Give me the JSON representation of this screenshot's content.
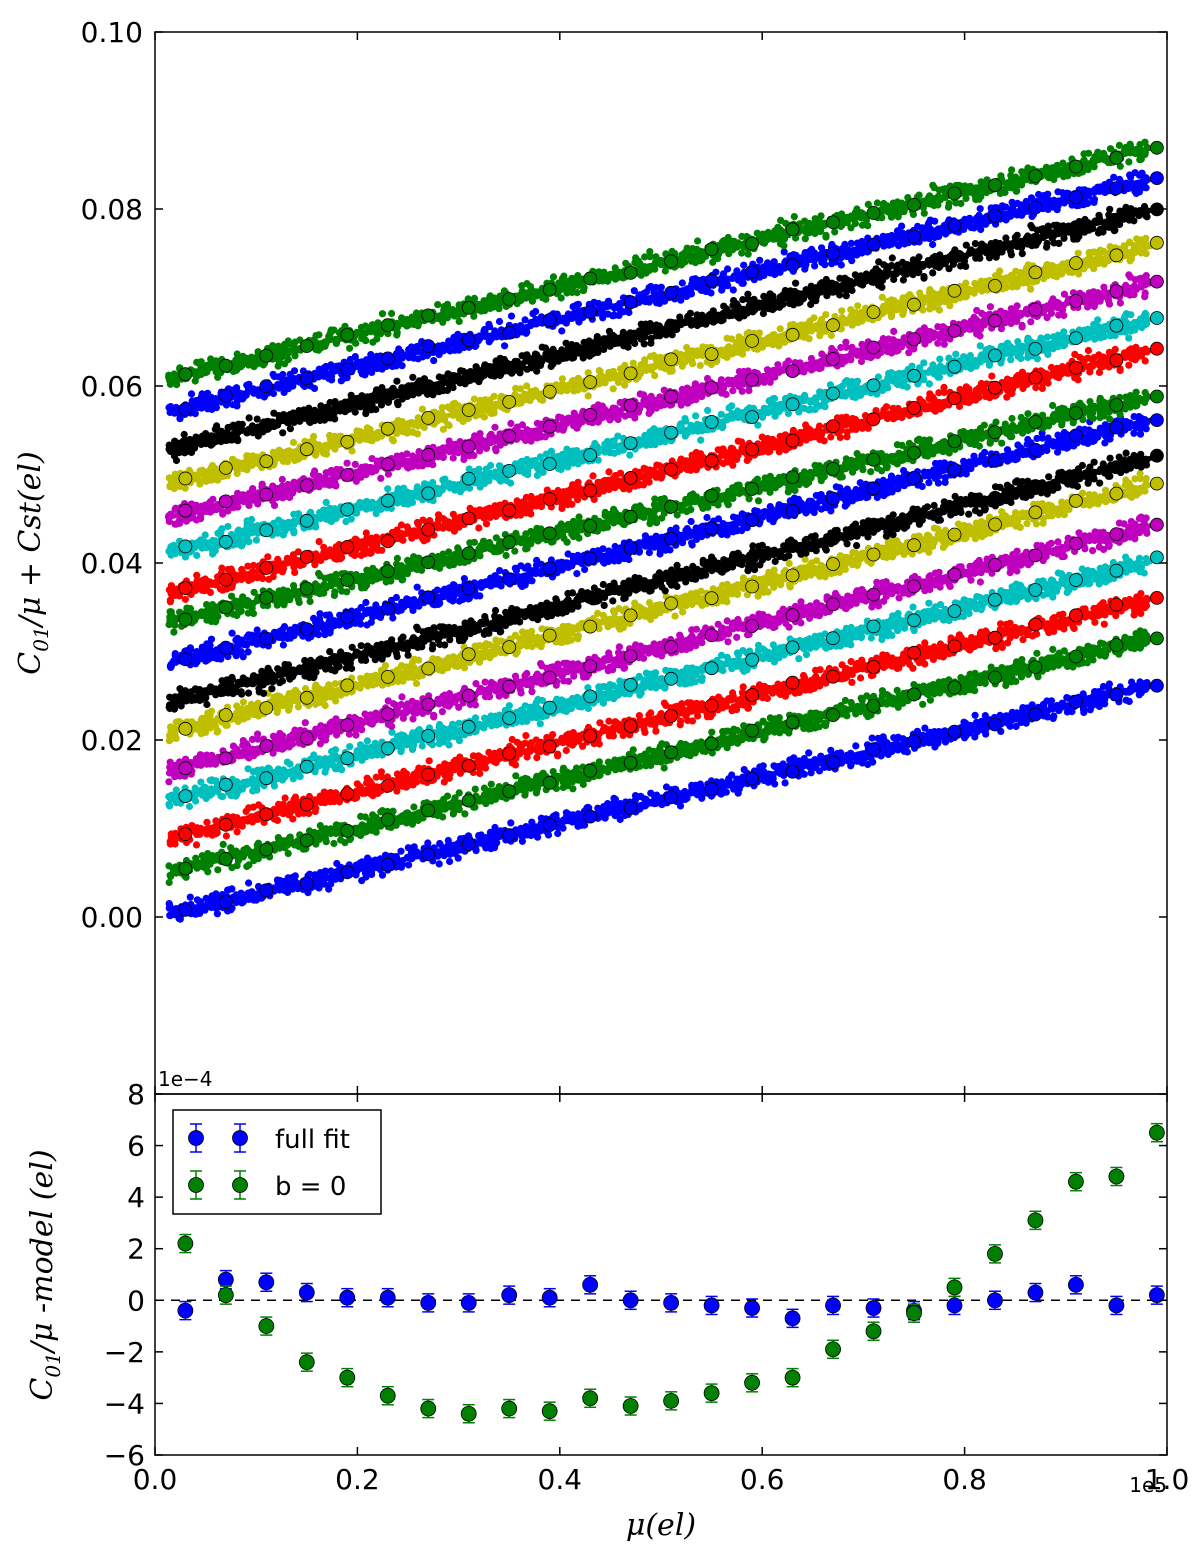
{
  "chart_data": [
    {
      "type": "scatter",
      "panel": "top",
      "xlim": [
        0,
        100000
      ],
      "ylim": [
        -0.02,
        0.1
      ],
      "ylabel_parts": {
        "main": "C",
        "sub": "01",
        "rest": "/μ + Cst(el)"
      },
      "yticks": [
        0.0,
        0.02,
        0.04,
        0.06,
        0.08,
        0.1
      ],
      "ytick_labels": [
        "0.00",
        "0.02",
        "0.04",
        "0.06",
        "0.08",
        "0.10"
      ],
      "grid": false,
      "series_colors": [
        "#0000ff",
        "#008000",
        "#ff0000",
        "#00bfbf",
        "#bf00bf",
        "#bfbf00",
        "#000000",
        "#0000ff",
        "#008000",
        "#ff0000",
        "#00bfbf",
        "#bf00bf",
        "#bfbf00",
        "#000000",
        "#0000ff",
        "#008000"
      ],
      "series": [
        {
          "intercept": 0.0,
          "slope_per_1e5": 0.0265
        },
        {
          "intercept": 0.0047,
          "slope_per_1e5": 0.0272
        },
        {
          "intercept": 0.0086,
          "slope_per_1e5": 0.0278
        },
        {
          "intercept": 0.0128,
          "slope_per_1e5": 0.0278
        },
        {
          "intercept": 0.0162,
          "slope_per_1e5": 0.0285
        },
        {
          "intercept": 0.0205,
          "slope_per_1e5": 0.0288
        },
        {
          "intercept": 0.0238,
          "slope_per_1e5": 0.0285
        },
        {
          "intercept": 0.0283,
          "slope_per_1e5": 0.0283
        },
        {
          "intercept": 0.033,
          "slope_per_1e5": 0.0262
        },
        {
          "intercept": 0.0362,
          "slope_per_1e5": 0.0283
        },
        {
          "intercept": 0.0408,
          "slope_per_1e5": 0.0272
        },
        {
          "intercept": 0.0448,
          "slope_per_1e5": 0.0272
        },
        {
          "intercept": 0.0487,
          "slope_per_1e5": 0.0275
        },
        {
          "intercept": 0.0525,
          "slope_per_1e5": 0.0278
        },
        {
          "intercept": 0.0568,
          "slope_per_1e5": 0.027
        },
        {
          "intercept": 0.0605,
          "slope_per_1e5": 0.0268
        }
      ]
    },
    {
      "type": "scatter",
      "panel": "bottom",
      "xlim": [
        0,
        100000
      ],
      "ylim": [
        -6,
        8
      ],
      "x_offset_text": "1e5",
      "y_offset_text": "1e−4",
      "xlabel": "μ(el)",
      "ylabel_parts": {
        "main": "C",
        "sub": "01",
        "rest": "/μ -model (el)"
      },
      "xticks": [
        0,
        0.2,
        0.4,
        0.6,
        0.8,
        1.0
      ],
      "xtick_labels": [
        "0.0",
        "0.2",
        "0.4",
        "0.6",
        "0.8",
        "1.0"
      ],
      "yticks": [
        -6,
        -4,
        -2,
        0,
        2,
        4,
        6,
        8
      ],
      "ytick_labels": [
        "−6",
        "−4",
        "−2",
        "0",
        "2",
        "4",
        "6",
        "8"
      ],
      "legend_position": "upper-left",
      "x": [
        3000,
        7000,
        11000,
        15000,
        19000,
        23000,
        27000,
        31000,
        35000,
        39000,
        43000,
        47000,
        51000,
        55000,
        59000,
        63000,
        67000,
        71000,
        75000,
        79000,
        83000,
        87000,
        91000,
        95000,
        99000
      ],
      "series": [
        {
          "name": "full fit",
          "color": "#0000ff",
          "values": [
            -0.4,
            0.8,
            0.7,
            0.3,
            0.1,
            0.1,
            -0.1,
            -0.1,
            0.2,
            0.1,
            0.6,
            0.0,
            -0.1,
            -0.2,
            -0.3,
            -0.7,
            -0.2,
            -0.3,
            -0.4,
            -0.2,
            0.0,
            0.3,
            0.6,
            -0.2,
            0.2
          ],
          "err": 0.35
        },
        {
          "name": "b = 0",
          "color": "#008000",
          "values": [
            2.2,
            0.2,
            -1.0,
            -2.4,
            -3.0,
            -3.7,
            -4.2,
            -4.4,
            -4.2,
            -4.3,
            -3.8,
            -4.1,
            -3.9,
            -3.6,
            -3.2,
            -3.0,
            -1.9,
            -1.2,
            -0.5,
            0.5,
            1.8,
            3.1,
            4.6,
            4.8,
            6.5
          ],
          "err": 0.35
        }
      ]
    }
  ]
}
